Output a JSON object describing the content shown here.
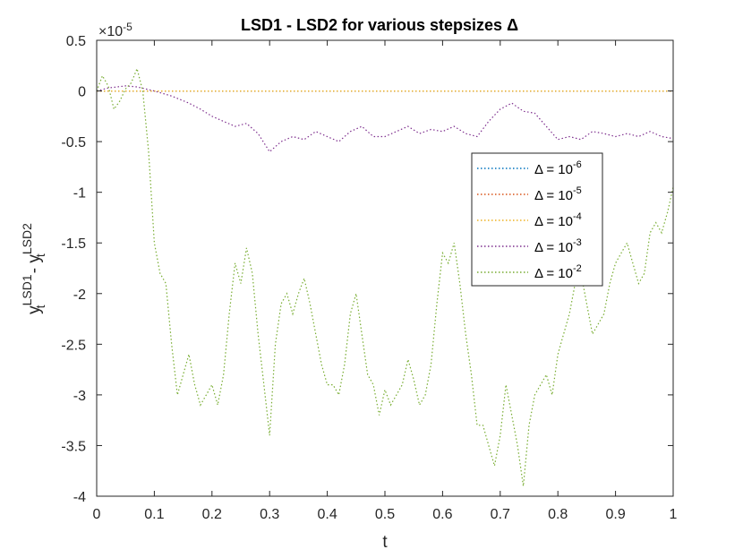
{
  "chart_data": {
    "type": "line",
    "title": "LSD1 - LSD2 for various stepsizes Δ",
    "xlabel": "t",
    "ylabel": {
      "base_1": "y",
      "sub_1": "t",
      "sup_1": "LSD1",
      "sep": " - ",
      "base_2": "y",
      "sub_2": "t",
      "sup_2": "LSD2"
    },
    "y_exponent": {
      "base": "×10",
      "power": "-5"
    },
    "xlim": [
      0,
      1
    ],
    "ylim": [
      -4,
      0.5
    ],
    "xticks": [
      "0",
      "0.1",
      "0.2",
      "0.3",
      "0.4",
      "0.5",
      "0.6",
      "0.7",
      "0.8",
      "0.9",
      "1"
    ],
    "yticks": [
      "0.5",
      "0",
      "-0.5",
      "-1",
      "-1.5",
      "-2",
      "-2.5",
      "-3",
      "-3.5",
      "-4"
    ],
    "grid": false,
    "legend_position": "upper-right",
    "series": [
      {
        "name": "Δ = 10-6",
        "label_base": "Δ = 10",
        "label_exp": "-6",
        "color": "#0072bd",
        "x": [
          0,
          1
        ],
        "y": [
          0,
          0
        ]
      },
      {
        "name": "Δ = 10-5",
        "label_base": "Δ = 10",
        "label_exp": "-5",
        "color": "#d95319",
        "x": [
          0,
          1
        ],
        "y": [
          0,
          0
        ]
      },
      {
        "name": "Δ = 10-4",
        "label_base": "Δ = 10",
        "label_exp": "-4",
        "color": "#edb120",
        "x": [
          0,
          1
        ],
        "y": [
          0,
          0
        ]
      },
      {
        "name": "Δ = 10-3",
        "label_base": "Δ = 10",
        "label_exp": "-3",
        "color": "#7e2f8e",
        "x": [
          0,
          0.02,
          0.05,
          0.07,
          0.1,
          0.13,
          0.16,
          0.18,
          0.2,
          0.22,
          0.24,
          0.26,
          0.28,
          0.3,
          0.32,
          0.34,
          0.36,
          0.38,
          0.4,
          0.42,
          0.44,
          0.46,
          0.48,
          0.5,
          0.52,
          0.54,
          0.56,
          0.58,
          0.6,
          0.62,
          0.64,
          0.66,
          0.68,
          0.7,
          0.72,
          0.74,
          0.76,
          0.78,
          0.8,
          0.82,
          0.84,
          0.86,
          0.88,
          0.9,
          0.92,
          0.94,
          0.96,
          0.98,
          1.0
        ],
        "y": [
          0,
          0.03,
          0.05,
          0.04,
          0.0,
          -0.05,
          -0.12,
          -0.18,
          -0.25,
          -0.3,
          -0.35,
          -0.32,
          -0.42,
          -0.6,
          -0.5,
          -0.45,
          -0.48,
          -0.4,
          -0.45,
          -0.5,
          -0.4,
          -0.35,
          -0.45,
          -0.45,
          -0.4,
          -0.35,
          -0.42,
          -0.38,
          -0.4,
          -0.35,
          -0.42,
          -0.45,
          -0.3,
          -0.18,
          -0.12,
          -0.2,
          -0.22,
          -0.35,
          -0.48,
          -0.45,
          -0.48,
          -0.4,
          -0.42,
          -0.45,
          -0.42,
          -0.45,
          -0.4,
          -0.45,
          -0.47
        ]
      },
      {
        "name": "Δ = 10-2",
        "label_base": "Δ = 10",
        "label_exp": "-2",
        "color": "#77ac30",
        "x": [
          0,
          0.01,
          0.02,
          0.03,
          0.04,
          0.05,
          0.06,
          0.07,
          0.08,
          0.09,
          0.1,
          0.11,
          0.12,
          0.13,
          0.14,
          0.15,
          0.16,
          0.17,
          0.18,
          0.19,
          0.2,
          0.21,
          0.22,
          0.23,
          0.24,
          0.25,
          0.26,
          0.27,
          0.28,
          0.29,
          0.3,
          0.31,
          0.32,
          0.33,
          0.34,
          0.35,
          0.36,
          0.37,
          0.38,
          0.39,
          0.4,
          0.41,
          0.42,
          0.43,
          0.44,
          0.45,
          0.46,
          0.47,
          0.48,
          0.49,
          0.5,
          0.51,
          0.52,
          0.53,
          0.54,
          0.55,
          0.56,
          0.57,
          0.58,
          0.59,
          0.6,
          0.61,
          0.62,
          0.63,
          0.64,
          0.65,
          0.66,
          0.67,
          0.68,
          0.69,
          0.7,
          0.71,
          0.72,
          0.73,
          0.74,
          0.75,
          0.76,
          0.77,
          0.78,
          0.79,
          0.8,
          0.81,
          0.82,
          0.83,
          0.84,
          0.85,
          0.86,
          0.87,
          0.88,
          0.89,
          0.9,
          0.91,
          0.92,
          0.93,
          0.94,
          0.95,
          0.96,
          0.97,
          0.98,
          0.99,
          1.0
        ],
        "y": [
          0,
          0.15,
          0.05,
          -0.18,
          -0.1,
          0.02,
          0.08,
          0.22,
          0.0,
          -0.6,
          -1.5,
          -1.8,
          -1.9,
          -2.5,
          -3.0,
          -2.8,
          -2.6,
          -2.9,
          -3.1,
          -3.0,
          -2.9,
          -3.1,
          -2.8,
          -2.2,
          -1.7,
          -1.9,
          -1.55,
          -1.8,
          -2.4,
          -2.9,
          -3.4,
          -2.5,
          -2.1,
          -2.0,
          -2.2,
          -2.0,
          -1.85,
          -2.1,
          -2.4,
          -2.7,
          -2.9,
          -2.9,
          -3.0,
          -2.7,
          -2.2,
          -2.0,
          -2.4,
          -2.8,
          -2.9,
          -3.2,
          -2.95,
          -3.1,
          -3.0,
          -2.9,
          -2.65,
          -2.85,
          -3.1,
          -3.0,
          -2.7,
          -2.1,
          -1.6,
          -1.7,
          -1.5,
          -1.9,
          -2.4,
          -2.8,
          -3.3,
          -3.3,
          -3.5,
          -3.7,
          -3.4,
          -2.9,
          -3.2,
          -3.5,
          -3.9,
          -3.3,
          -3.0,
          -2.9,
          -2.8,
          -3.0,
          -2.6,
          -2.4,
          -2.2,
          -1.9,
          -1.8,
          -2.1,
          -2.4,
          -2.3,
          -2.2,
          -1.9,
          -1.7,
          -1.6,
          -1.5,
          -1.7,
          -1.9,
          -1.8,
          -1.4,
          -1.3,
          -1.4,
          -1.2,
          -0.95
        ]
      }
    ]
  }
}
